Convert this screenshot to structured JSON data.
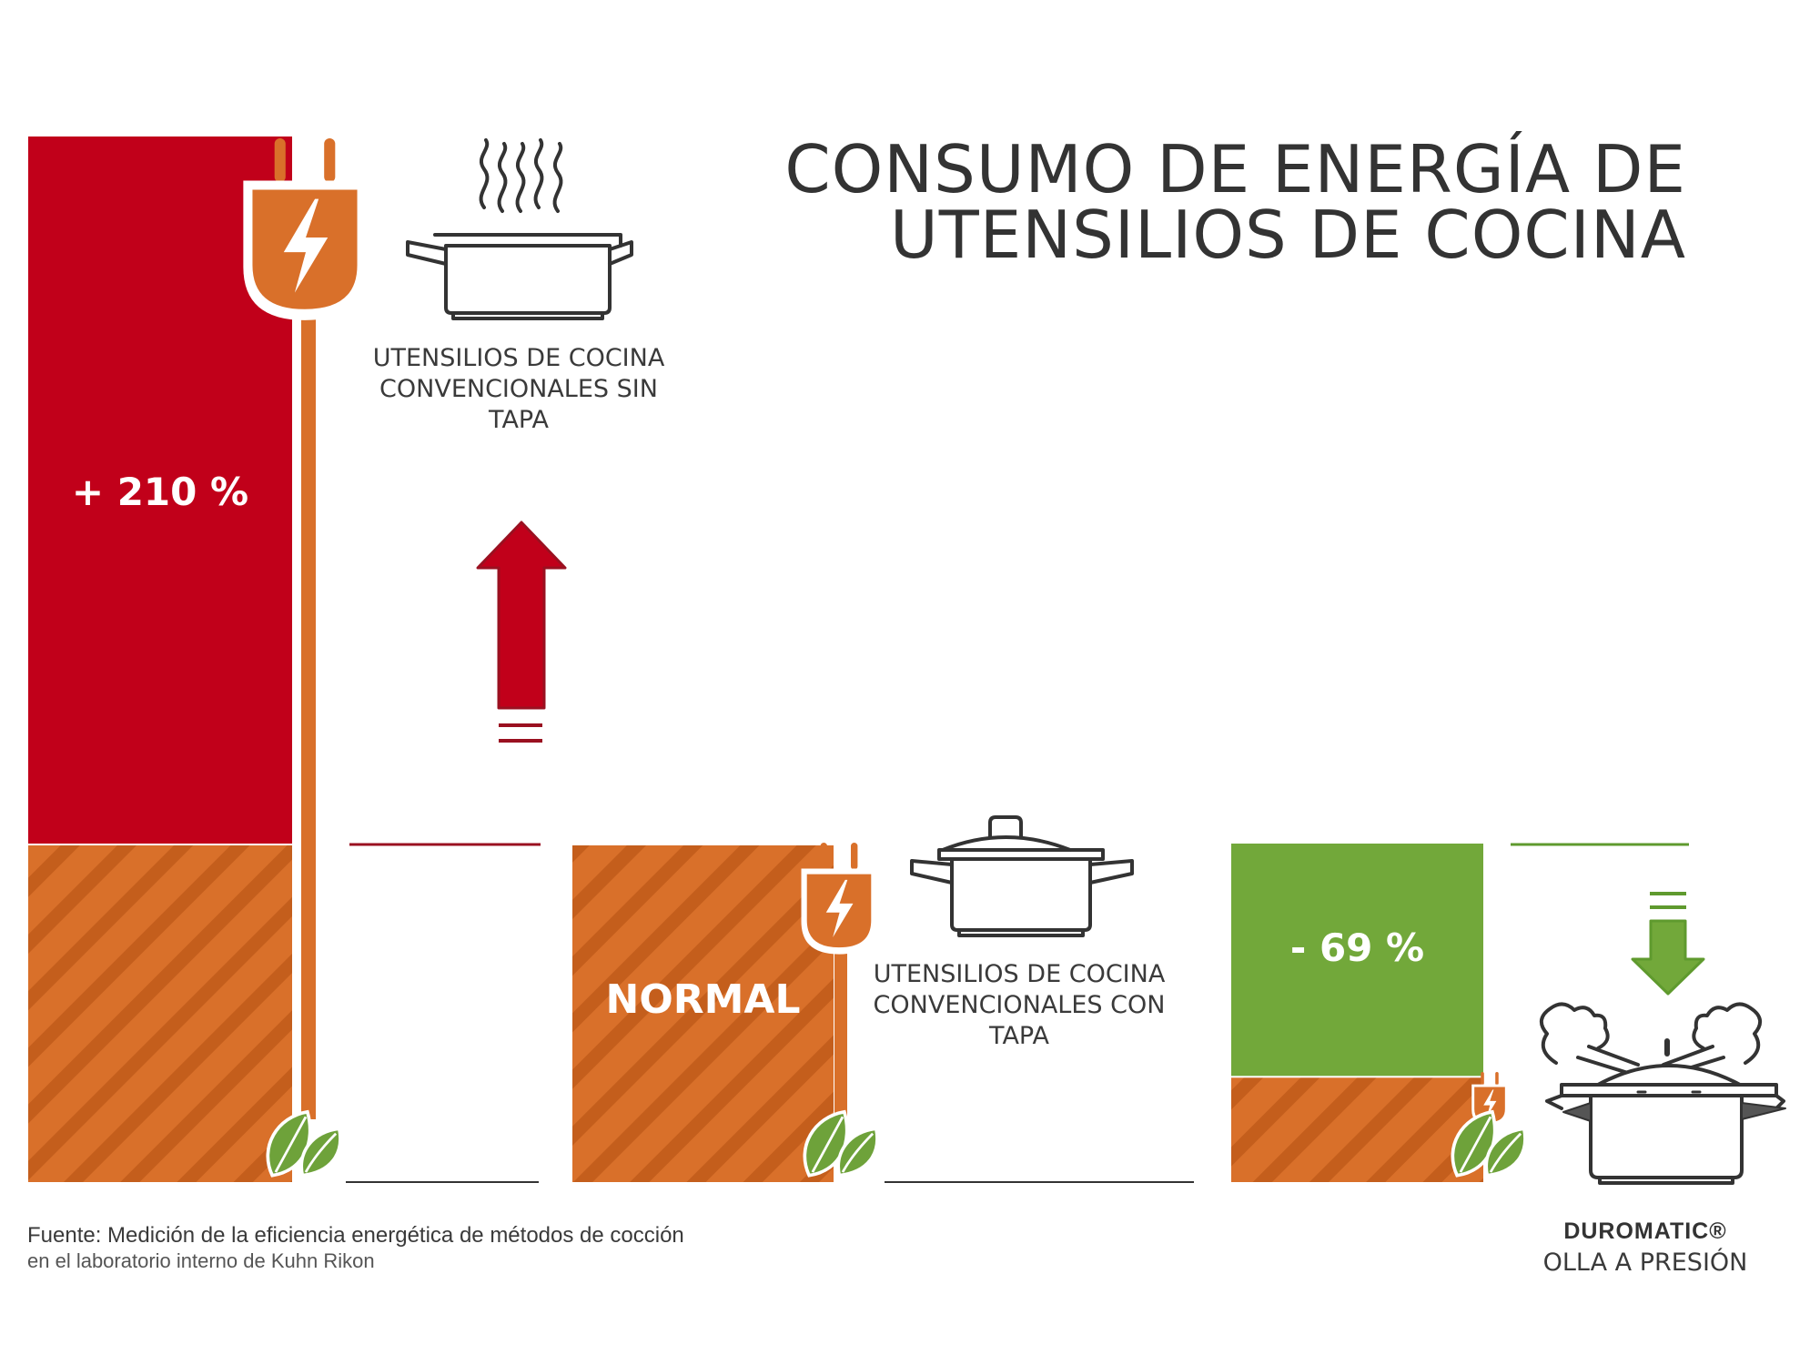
{
  "header": {
    "title_line1": "CONSUMO DE ENERGÍA DE",
    "title_line2": "UTENSILIOS DE COCINA"
  },
  "colors": {
    "red": "#c1001a",
    "orange": "#d9702a",
    "orange_dark": "#c45e1c",
    "green": "#72a83a",
    "leaf_green": "#6ea23a",
    "text_dark": "#333333",
    "outline": "#333333"
  },
  "icons": {
    "plug": "electric-plug-icon",
    "leaves": "leaves-icon",
    "open_pot": "steaming-pot-icon",
    "lidded_pot": "lidded-pot-icon",
    "pressure_cooker": "pressure-cooker-icon",
    "up_arrow": "up-arrow-icon",
    "down_arrow": "down-arrow-icon"
  },
  "chart_data": {
    "type": "bar",
    "title": "CONSUMO DE ENERGÍA DE UTENSILIOS DE COCINA",
    "baseline_label": "NORMAL",
    "categories": [
      "UTENSILIOS DE COCINA CONVENCIONALES SIN TAPA",
      "UTENSILIOS DE COCINA CONVENCIONALES CON TAPA",
      "DUROMATIC® OLLA A PRESIÓN"
    ],
    "values": [
      310,
      100,
      31
    ],
    "change_labels": [
      "+ 210 %",
      "NORMAL",
      "- 69 %"
    ],
    "ylim": [
      0,
      310
    ],
    "grid": false
  },
  "captions": {
    "no_lid": [
      "UTENSILIOS DE COCINA",
      "CONVENCIONALES SIN",
      "TAPA"
    ],
    "with_lid": [
      "UTENSILIOS DE COCINA",
      "CONVENCIONALES CON",
      "TAPA"
    ]
  },
  "brand": {
    "name": "DUROMATIC®",
    "product": "OLLA A PRESIÓN"
  },
  "footer": {
    "source_line1": "Fuente: Medición de la eficiencia energética de métodos de cocción",
    "source_line2": "en el laboratorio interno de Kuhn Rikon"
  }
}
